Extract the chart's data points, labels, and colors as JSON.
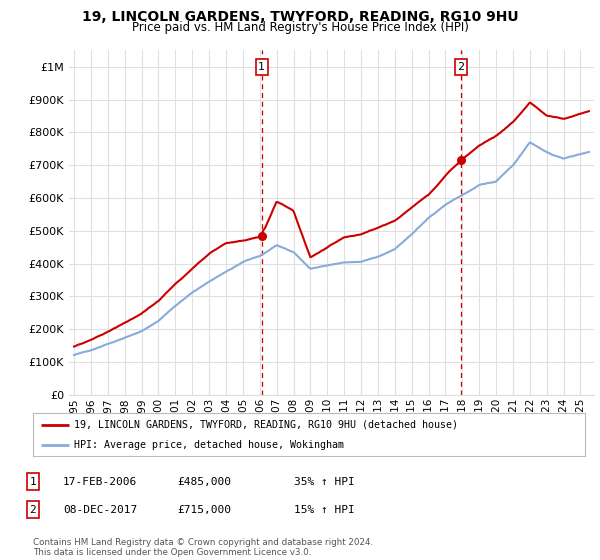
{
  "title": "19, LINCOLN GARDENS, TWYFORD, READING, RG10 9HU",
  "subtitle": "Price paid vs. HM Land Registry's House Price Index (HPI)",
  "ylabel_ticks": [
    "£0",
    "£100K",
    "£200K",
    "£300K",
    "£400K",
    "£500K",
    "£600K",
    "£700K",
    "£800K",
    "£900K",
    "£1M"
  ],
  "ytick_values": [
    0,
    100000,
    200000,
    300000,
    400000,
    500000,
    600000,
    700000,
    800000,
    900000,
    1000000
  ],
  "ylim": [
    0,
    1050000
  ],
  "xlim_start": 1994.7,
  "xlim_end": 2025.8,
  "red_line_color": "#cc0000",
  "blue_line_color": "#88aadd",
  "grid_color": "#e0e0e0",
  "marker1_date": 2006.12,
  "marker1_value": 485000,
  "marker2_date": 2017.92,
  "marker2_value": 715000,
  "vline_color": "#cc0000",
  "legend_label_red": "19, LINCOLN GARDENS, TWYFORD, READING, RG10 9HU (detached house)",
  "legend_label_blue": "HPI: Average price, detached house, Wokingham",
  "table_rows": [
    {
      "num": "1",
      "date": "17-FEB-2006",
      "price": "£485,000",
      "change": "35% ↑ HPI"
    },
    {
      "num": "2",
      "date": "08-DEC-2017",
      "price": "£715,000",
      "change": "15% ↑ HPI"
    }
  ],
  "footer": "Contains HM Land Registry data © Crown copyright and database right 2024.\nThis data is licensed under the Open Government Licence v3.0.",
  "background_color": "#ffffff",
  "xtick_years": [
    1995,
    1996,
    1997,
    1998,
    1999,
    2000,
    2001,
    2002,
    2003,
    2004,
    2005,
    2006,
    2007,
    2008,
    2009,
    2010,
    2011,
    2012,
    2013,
    2014,
    2015,
    2016,
    2017,
    2018,
    2019,
    2020,
    2021,
    2022,
    2023,
    2024,
    2025
  ]
}
